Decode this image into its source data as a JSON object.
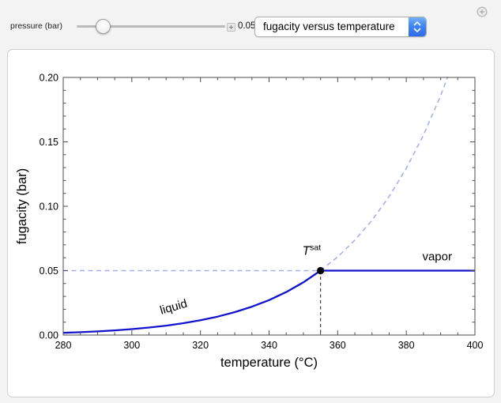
{
  "controls": {
    "slider_label": "pressure (bar)",
    "slider_value": "0.05",
    "dropdown_value": "fugacity versus temperature",
    "icons": {
      "value_expander": "plus-icon",
      "top_right": "expand-controls-plus-icon",
      "dropdown_stepper": "up-down-chevrons-icon"
    }
  },
  "chart_data": {
    "type": "line",
    "title": "",
    "xlabel": "temperature (°C)",
    "ylabel": "fugacity (bar)",
    "xlim": [
      280,
      400
    ],
    "ylim": [
      0,
      0.2
    ],
    "x_major_ticks": [
      280,
      300,
      320,
      340,
      360,
      380,
      400
    ],
    "x_tick_labels": [
      "280",
      "300",
      "320",
      "340",
      "360",
      "380",
      "400"
    ],
    "x_minor_step": 5,
    "y_major_ticks": [
      0,
      0.05,
      0.1,
      0.15,
      0.2
    ],
    "y_tick_labels": [
      "0.00",
      "0.05",
      "0.10",
      "0.15",
      "0.20"
    ],
    "y_minor_step": 0.01,
    "grid": false,
    "legend": "none",
    "tsat_celsius": 355,
    "pressure_bar": 0.05,
    "annotations": {
      "tsat_base": "T",
      "tsat_sup": "sat",
      "liquid_label": "liquid",
      "vapor_label": "vapor"
    },
    "colors": {
      "solid_blue": "#1313cd",
      "dashed_periwinkle": "#a9aeea",
      "dashed_black": "#3c3c3c",
      "frame": "#4d4d4d",
      "point": "#000000"
    },
    "series": [
      {
        "name": "liquid fugacity (solid)",
        "style": "solid",
        "x": [
          280,
          285,
          290,
          295,
          300,
          305,
          310,
          315,
          320,
          325,
          330,
          335,
          340,
          345,
          350,
          355
        ],
        "y": [
          0.0017,
          0.0022,
          0.0028,
          0.0036,
          0.0046,
          0.0058,
          0.0073,
          0.0092,
          0.0115,
          0.0143,
          0.0178,
          0.022,
          0.0271,
          0.0334,
          0.0409,
          0.05
        ]
      },
      {
        "name": "liquid extension above Tsat (dashed)",
        "style": "dashed",
        "x": [
          355,
          360,
          365,
          370,
          375,
          380,
          385,
          390,
          395,
          400
        ],
        "y": [
          0.05,
          0.0607,
          0.0737,
          0.0891,
          0.1076,
          0.1295,
          0.1553,
          0.1858,
          0.2218,
          0.2639
        ]
      },
      {
        "name": "vapor fugacity (solid)",
        "style": "solid",
        "x": [
          355,
          400
        ],
        "y": [
          0.05,
          0.05
        ]
      },
      {
        "name": "vapor extension below Tsat (dashed)",
        "style": "dashed",
        "x": [
          280,
          355
        ],
        "y": [
          0.05,
          0.05
        ]
      }
    ],
    "marker_point": {
      "x": 355,
      "y": 0.05
    }
  }
}
